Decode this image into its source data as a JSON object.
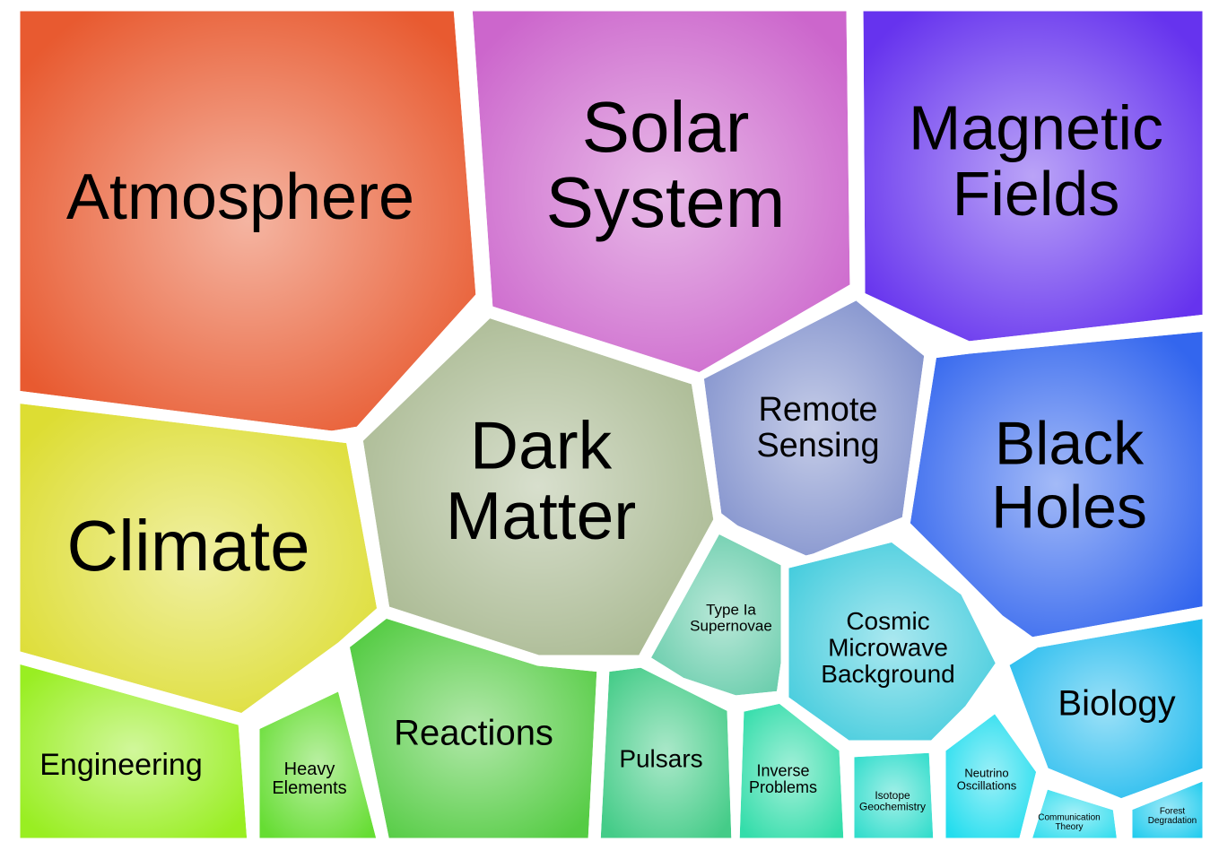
{
  "cells": [
    {
      "label_lines": [
        "Atmosphere"
      ],
      "color": "#e85a30"
    },
    {
      "label_lines": [
        "Solar",
        "System"
      ],
      "color": "#cc66cc"
    },
    {
      "label_lines": [
        "Magnetic",
        "Fields"
      ],
      "color": "#6633ee"
    },
    {
      "label_lines": [
        "Dark",
        "Matter"
      ],
      "color": "#a8b890"
    },
    {
      "label_lines": [
        "Remote",
        "Sensing"
      ],
      "color": "#8090cc"
    },
    {
      "label_lines": [
        "Black",
        "Holes"
      ],
      "color": "#3366ee"
    },
    {
      "label_lines": [
        "Climate"
      ],
      "color": "#dddd33"
    },
    {
      "label_lines": [
        "Engineering"
      ],
      "color": "#99ee22"
    },
    {
      "label_lines": [
        "Heavy",
        "Elements"
      ],
      "color": "#66dd33"
    },
    {
      "label_lines": [
        "Reactions"
      ],
      "color": "#55cc44"
    },
    {
      "label_lines": [
        "Type Ia",
        "Supernovae"
      ],
      "color": "#66ccaa"
    },
    {
      "label_lines": [
        "Cosmic",
        "Microwave",
        "Background"
      ],
      "color": "#44ccdd"
    },
    {
      "label_lines": [
        "Pulsars"
      ],
      "color": "#44cc88"
    },
    {
      "label_lines": [
        "Inverse",
        "Problems"
      ],
      "color": "#33ddaa"
    },
    {
      "label_lines": [
        "Isotope",
        "Geochemistry"
      ],
      "color": "#33ddcc"
    },
    {
      "label_lines": [
        "Neutrino",
        "Oscillations"
      ],
      "color": "#22ddee"
    },
    {
      "label_lines": [
        "Biology"
      ],
      "color": "#22bbee"
    },
    {
      "label_lines": [
        "Communication",
        "Theory"
      ],
      "color": "#33ddee"
    },
    {
      "label_lines": [
        "Forest",
        "Degradation"
      ],
      "color": "#22ccee"
    }
  ]
}
